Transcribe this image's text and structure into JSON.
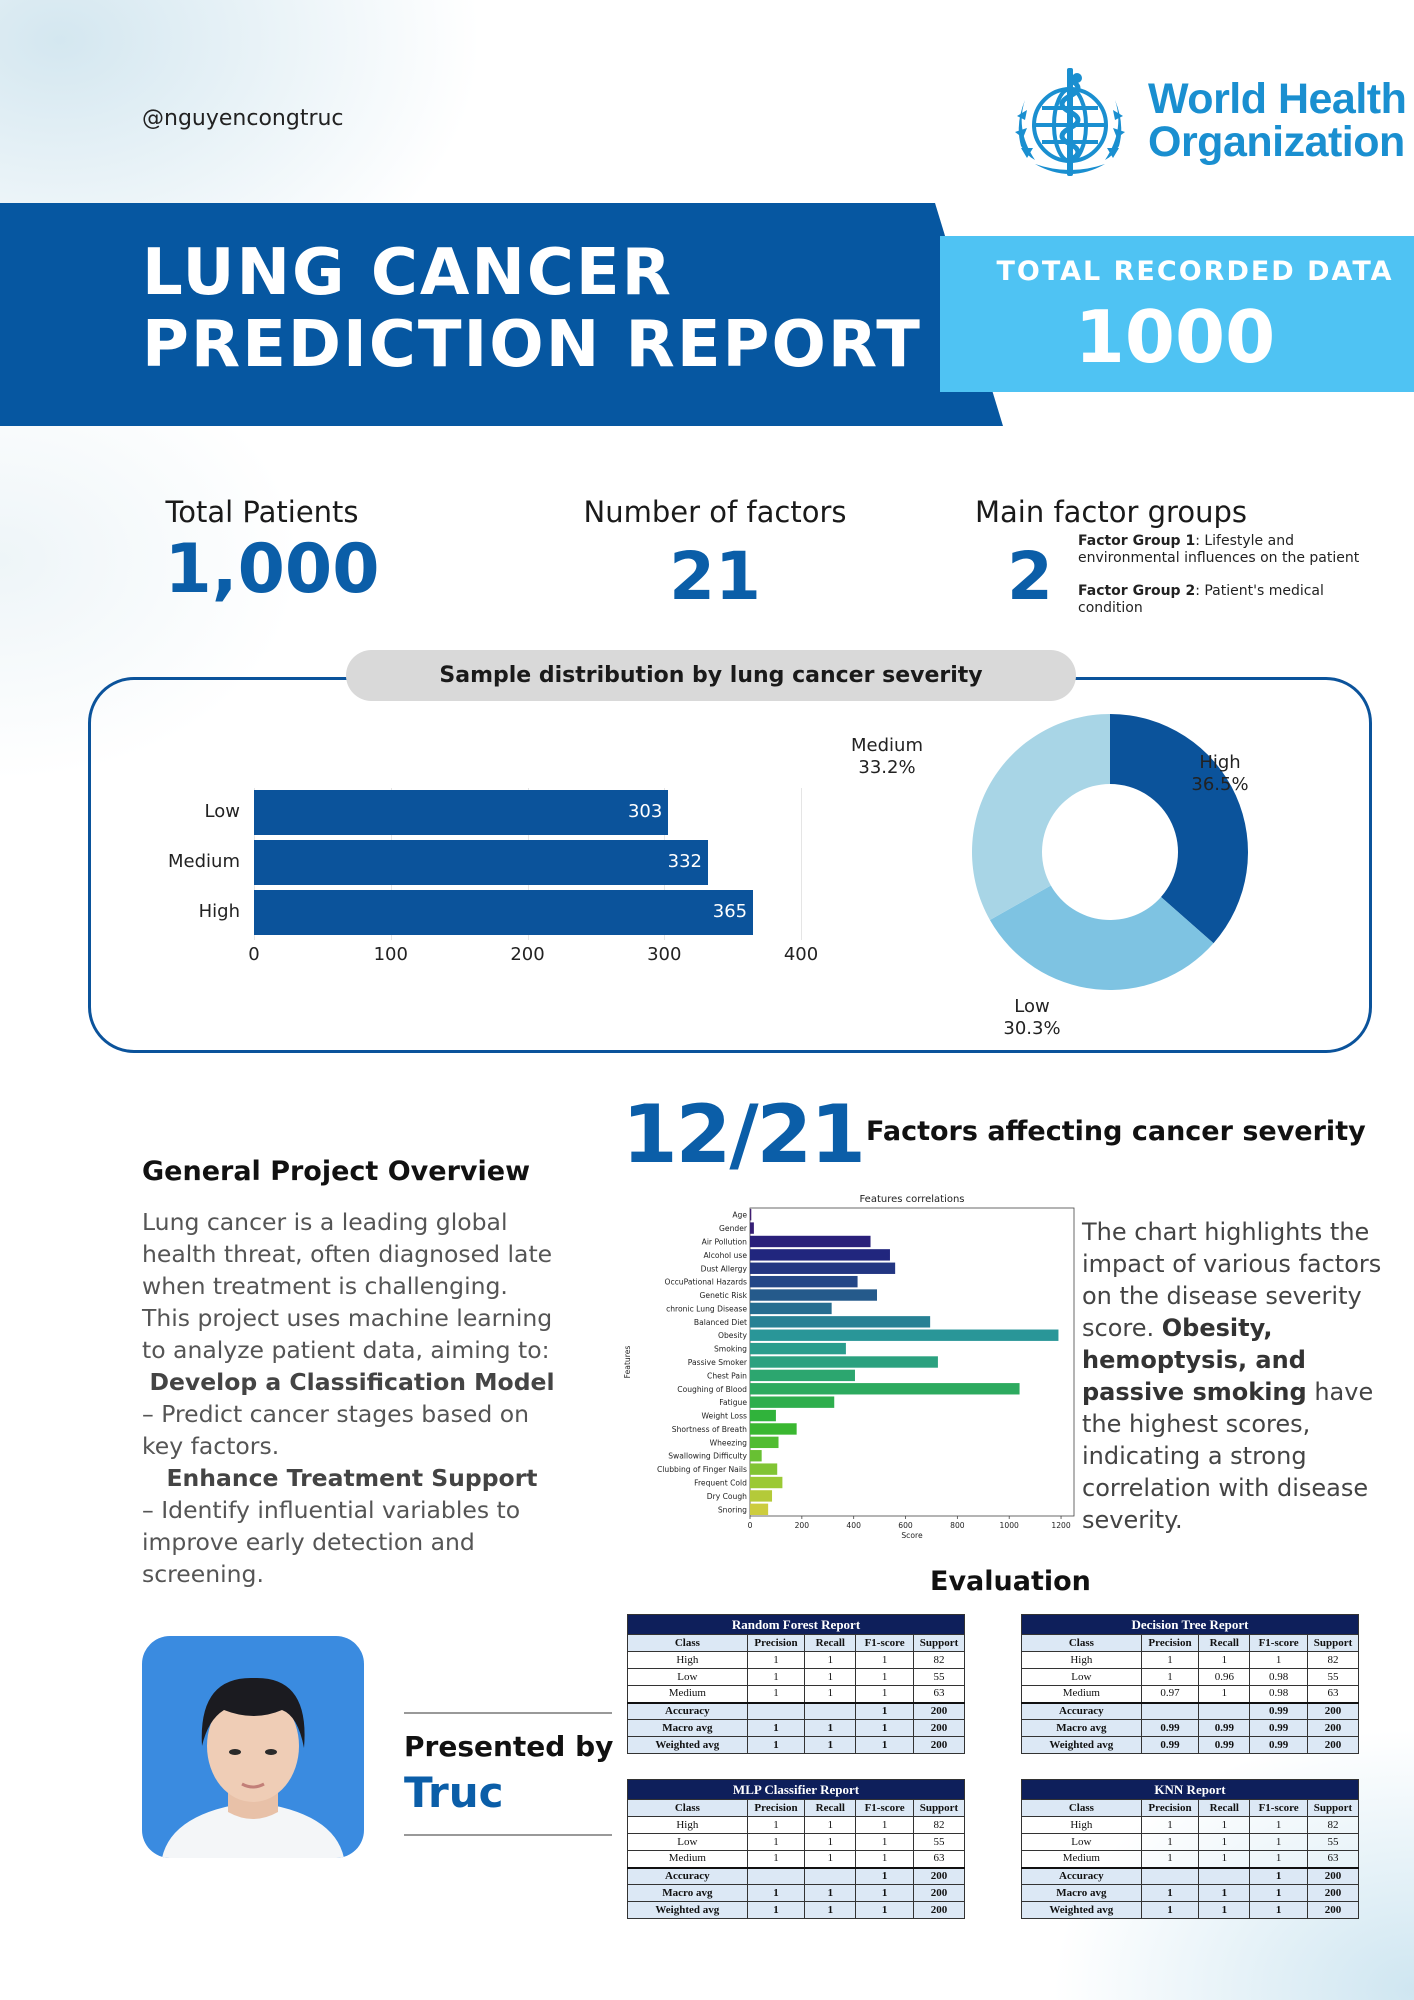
{
  "header": {
    "handle": "@nguyencongtruc",
    "org_line1": "World Health",
    "org_line2": "Organization",
    "title_line1": "LUNG CANCER",
    "title_line2": "PREDICTION  REPORT",
    "total_label": "TOTAL RECORDED DATA",
    "total_value": "1000"
  },
  "stats": {
    "patients_label": "Total Patients",
    "patients_value": "1,000",
    "factors_label": "Number of factors",
    "factors_value": "21",
    "groups_label": "Main factor groups",
    "groups_value": "2",
    "group1_name": "Factor Group 1",
    "group1_desc": ": Lifestyle and environmental influences on the patient",
    "group2_name": "Factor Group  2",
    "group2_desc": ": Patient's medical condition"
  },
  "distribution": {
    "title": "Sample distribution by lung cancer severity"
  },
  "chart_data": [
    {
      "type": "bar",
      "orientation": "horizontal",
      "categories": [
        "Low",
        "Medium",
        "High"
      ],
      "values": [
        303,
        332,
        365
      ],
      "xlim": [
        0,
        400
      ],
      "ticks": [
        0,
        100,
        200,
        300,
        400
      ],
      "color": "#0b539b"
    },
    {
      "type": "pie",
      "style": "donut",
      "slices": [
        {
          "label": "High",
          "value": 36.5,
          "display": "36.5%",
          "color": "#0b539b"
        },
        {
          "label": "Low",
          "value": 30.3,
          "display": "30.3%",
          "color": "#7ec3e2"
        },
        {
          "label": "Medium",
          "value": 33.2,
          "display": "33.2%",
          "color": "#a8d5e6"
        }
      ]
    },
    {
      "type": "bar",
      "orientation": "horizontal",
      "title": "Features correlations",
      "xlabel": "Score",
      "ylabel": "Features",
      "xlim": [
        0,
        1250
      ],
      "ticks": [
        0,
        200,
        400,
        600,
        800,
        1000,
        1200
      ],
      "categories": [
        "Age",
        "Gender",
        "Air Pollution",
        "Alcohol use",
        "Dust Allergy",
        "OccuPational Hazards",
        "Genetic Risk",
        "chronic Lung Disease",
        "Balanced Diet",
        "Obesity",
        "Smoking",
        "Passive Smoker",
        "Chest Pain",
        "Coughing of Blood",
        "Fatigue",
        "Weight Loss",
        "Shortness of Breath",
        "Wheezing",
        "Swallowing Difficulty",
        "Clubbing of Finger Nails",
        "Frequent Cold",
        "Dry Cough",
        "Snoring"
      ],
      "values": [
        5,
        15,
        465,
        540,
        560,
        415,
        490,
        315,
        695,
        1190,
        370,
        725,
        405,
        1040,
        325,
        100,
        180,
        110,
        45,
        105,
        125,
        85,
        70
      ]
    }
  ],
  "factors": {
    "fraction": "12/21",
    "title": "Factors affecting cancer severity",
    "desc_pre": "The chart highlights the impact of various factors on the disease severity score. ",
    "desc_bold": "Obesity, hemoptysis, and passive smoking",
    "desc_post": " have the highest scores, indicating a strong correlation with disease severity."
  },
  "overview": {
    "title": "General Project Overview",
    "intro": "Lung cancer is a leading global health threat, often diagnosed late when treatment is challenging. This project uses machine learning to analyze patient data, aiming to:",
    "goal1_title": "Develop a Classification Model",
    "goal1_desc": "– Predict cancer stages based on key factors.",
    "goal2_title": "Enhance Treatment Support",
    "goal2_desc": "– Identify influential variables to improve early detection and screening."
  },
  "presenter": {
    "label": "Presented by",
    "name": "Truc"
  },
  "evaluation": {
    "title": "Evaluation",
    "columns": [
      "Class",
      "Precision",
      "Recall",
      "F1-score",
      "Support"
    ],
    "reports": [
      {
        "name": "Random Forest Report",
        "rows": [
          [
            "High",
            "1",
            "1",
            "1",
            "82"
          ],
          [
            "Low",
            "1",
            "1",
            "1",
            "55"
          ],
          [
            "Medium",
            "1",
            "1",
            "1",
            "63"
          ]
        ],
        "summary": [
          [
            "Accuracy",
            "",
            "",
            "1",
            "200"
          ],
          [
            "Macro avg",
            "1",
            "1",
            "1",
            "200"
          ],
          [
            "Weighted avg",
            "1",
            "1",
            "1",
            "200"
          ]
        ]
      },
      {
        "name": "Decision Tree Report",
        "rows": [
          [
            "High",
            "1",
            "1",
            "1",
            "82"
          ],
          [
            "Low",
            "1",
            "0.96",
            "0.98",
            "55"
          ],
          [
            "Medium",
            "0.97",
            "1",
            "0.98",
            "63"
          ]
        ],
        "summary": [
          [
            "Accuracy",
            "",
            "",
            "0.99",
            "200"
          ],
          [
            "Macro avg",
            "0.99",
            "0.99",
            "0.99",
            "200"
          ],
          [
            "Weighted avg",
            "0.99",
            "0.99",
            "0.99",
            "200"
          ]
        ]
      },
      {
        "name": "MLP Classifier Report",
        "rows": [
          [
            "High",
            "1",
            "1",
            "1",
            "82"
          ],
          [
            "Low",
            "1",
            "1",
            "1",
            "55"
          ],
          [
            "Medium",
            "1",
            "1",
            "1",
            "63"
          ]
        ],
        "summary": [
          [
            "Accuracy",
            "",
            "",
            "1",
            "200"
          ],
          [
            "Macro avg",
            "1",
            "1",
            "1",
            "200"
          ],
          [
            "Weighted avg",
            "1",
            "1",
            "1",
            "200"
          ]
        ]
      },
      {
        "name": "KNN Report",
        "rows": [
          [
            "High",
            "1",
            "1",
            "1",
            "82"
          ],
          [
            "Low",
            "1",
            "1",
            "1",
            "55"
          ],
          [
            "Medium",
            "1",
            "1",
            "1",
            "63"
          ]
        ],
        "summary": [
          [
            "Accuracy",
            "",
            "",
            "1",
            "200"
          ],
          [
            "Macro avg",
            "1",
            "1",
            "1",
            "200"
          ],
          [
            "Weighted avg",
            "1",
            "1",
            "1",
            "200"
          ]
        ]
      }
    ]
  },
  "colors": {
    "primary": "#0b539b",
    "accent": "#4fc3f3",
    "who_blue": "#1a8fd0",
    "table_header": "#0e1f5b"
  }
}
